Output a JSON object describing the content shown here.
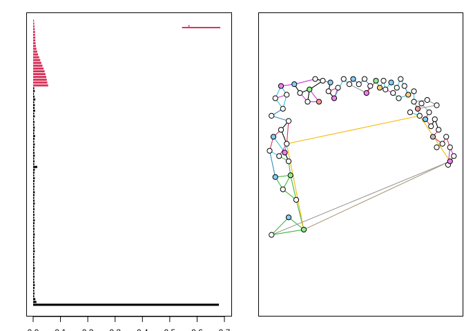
{
  "chart_data": [
    {
      "type": "bar",
      "orientation": "horizontal",
      "xlim": [
        0,
        0.7
      ],
      "x_ticks": [
        0.0,
        0.1,
        0.2,
        0.3,
        0.4,
        0.5,
        0.6,
        0.7
      ],
      "x_tick_labels": [
        "0.0",
        "0.1",
        "0.2",
        "0.3",
        "0.4",
        "0.5",
        "0.6",
        "0.7"
      ],
      "title": "",
      "xlabel": "",
      "ylabel": "",
      "grid": false,
      "colors": {
        "top_group": "#d6335a",
        "bottom_group": "#000000"
      },
      "series": [
        {
          "color": "#d6335a",
          "values": [
            0.003,
            0.004,
            0.005,
            0.006,
            0.007,
            0.007,
            0.008,
            0.008,
            0.009,
            0.01,
            0.012,
            0.015,
            0.018,
            0.022,
            0.026,
            0.03,
            0.034,
            0.038,
            0.042,
            0.045,
            0.048,
            0.05,
            0.052,
            0.055
          ],
          "highlight": {
            "start": 0.545,
            "end": 0.685,
            "marker": 0.57
          }
        },
        {
          "color": "#000000",
          "values": [
            0.004,
            0.006,
            0.003,
            0.005,
            0.008,
            0.004,
            0.006,
            0.005,
            0.007,
            0.004,
            0.006,
            0.003,
            0.005,
            0.004,
            0.006,
            0.005,
            0.004,
            0.007,
            0.005,
            0.004,
            0.006,
            0.005,
            0.004,
            0.005,
            0.006,
            0.004,
            0.005,
            0.004,
            0.015,
            0.006,
            0.005,
            0.004,
            0.006,
            0.005,
            0.004,
            0.005,
            0.004,
            0.006,
            0.005,
            0.004,
            0.005,
            0.006,
            0.004,
            0.005,
            0.004,
            0.005,
            0.004,
            0.006,
            0.005,
            0.004,
            0.005,
            0.004,
            0.006,
            0.005,
            0.004,
            0.005,
            0.004,
            0.005,
            0.006,
            0.004,
            0.005,
            0.004,
            0.005,
            0.004,
            0.006,
            0.005,
            0.004,
            0.005,
            0.004,
            0.005,
            0.006,
            0.005,
            0.004,
            0.005,
            0.004,
            0.008,
            0.012,
            0.68
          ]
        }
      ]
    },
    {
      "type": "network",
      "title": "",
      "axes": false,
      "edge_colors": {
        "blue": "#2b8cbe",
        "cyan": "#33c1d6",
        "magenta": "#cc33cc",
        "crimson": "#d6335a",
        "green": "#3db83d",
        "gold": "#f5b800",
        "gray": "#999999",
        "tan": "#a89a7a",
        "black": "#000000"
      },
      "node_palette": [
        "#ffffff",
        "#87cefa",
        "#90ee90",
        "#ffd27f",
        "#ff9999",
        "#ee82ee",
        "#bfbfbf"
      ],
      "nodes": [
        [
          0.03,
          0.1,
          0
        ],
        [
          0.12,
          0.2,
          1
        ],
        [
          0.2,
          0.13,
          2
        ],
        [
          0.16,
          0.3,
          0
        ],
        [
          0.09,
          0.36,
          0
        ],
        [
          0.05,
          0.43,
          1
        ],
        [
          0.13,
          0.44,
          2
        ],
        [
          0.12,
          0.52,
          0
        ],
        [
          0.07,
          0.55,
          0
        ],
        [
          0.02,
          0.58,
          0
        ],
        [
          0.04,
          0.66,
          1
        ],
        [
          0.08,
          0.7,
          0
        ],
        [
          0.11,
          0.62,
          0
        ],
        [
          0.1,
          0.57,
          5
        ],
        [
          0.12,
          0.75,
          0
        ],
        [
          0.03,
          0.78,
          0
        ],
        [
          0.09,
          0.82,
          0
        ],
        [
          0.05,
          0.88,
          0
        ],
        [
          0.11,
          0.9,
          0
        ],
        [
          0.08,
          0.95,
          5
        ],
        [
          0.15,
          0.96,
          1
        ],
        [
          0.18,
          0.91,
          0
        ],
        [
          0.23,
          0.93,
          2
        ],
        [
          0.22,
          0.86,
          0
        ],
        [
          0.28,
          0.86,
          4
        ],
        [
          0.26,
          0.99,
          0
        ],
        [
          0.3,
          0.98,
          0
        ],
        [
          0.34,
          0.97,
          1
        ],
        [
          0.33,
          0.92,
          0
        ],
        [
          0.38,
          0.94,
          0
        ],
        [
          0.36,
          0.88,
          5
        ],
        [
          0.41,
          0.99,
          0
        ],
        [
          0.44,
          0.96,
          0
        ],
        [
          0.46,
          0.99,
          1
        ],
        [
          0.49,
          0.96,
          0
        ],
        [
          0.52,
          0.99,
          0
        ],
        [
          0.55,
          0.95,
          0
        ],
        [
          0.53,
          0.91,
          5
        ],
        [
          0.58,
          0.98,
          2
        ],
        [
          0.6,
          0.94,
          3
        ],
        [
          0.62,
          0.98,
          0
        ],
        [
          0.63,
          0.93,
          0
        ],
        [
          0.66,
          0.97,
          1
        ],
        [
          0.69,
          0.94,
          0
        ],
        [
          0.71,
          0.99,
          0
        ],
        [
          0.73,
          0.95,
          0
        ],
        [
          0.75,
          0.9,
          3
        ],
        [
          0.78,
          0.92,
          0
        ],
        [
          0.7,
          0.88,
          0
        ],
        [
          0.67,
          0.91,
          0
        ],
        [
          0.78,
          0.86,
          0
        ],
        [
          0.8,
          0.82,
          4
        ],
        [
          0.82,
          0.85,
          0
        ],
        [
          0.86,
          0.8,
          0
        ],
        [
          0.84,
          0.76,
          1
        ],
        [
          0.87,
          0.72,
          0
        ],
        [
          0.89,
          0.76,
          0
        ],
        [
          0.91,
          0.7,
          0
        ],
        [
          0.88,
          0.66,
          6
        ],
        [
          0.93,
          0.62,
          0
        ],
        [
          0.95,
          0.66,
          0
        ],
        [
          0.97,
          0.6,
          0
        ],
        [
          0.99,
          0.55,
          0
        ],
        [
          0.96,
          0.5,
          0
        ],
        [
          0.9,
          0.84,
          0
        ],
        [
          0.85,
          0.87,
          0
        ],
        [
          0.81,
          0.78,
          0
        ],
        [
          0.76,
          0.8,
          0
        ],
        [
          0.9,
          0.6,
          0
        ],
        [
          0.97,
          0.52,
          5
        ]
      ],
      "edges": [
        [
          0,
          1,
          "green"
        ],
        [
          1,
          2,
          "green"
        ],
        [
          0,
          2,
          "green"
        ],
        [
          2,
          3,
          "green"
        ],
        [
          3,
          4,
          "green"
        ],
        [
          4,
          6,
          "green"
        ],
        [
          4,
          5,
          "green"
        ],
        [
          5,
          6,
          "green"
        ],
        [
          6,
          7,
          "green"
        ],
        [
          7,
          8,
          "green"
        ],
        [
          8,
          9,
          "cyan"
        ],
        [
          7,
          13,
          "black"
        ],
        [
          13,
          12,
          "cyan"
        ],
        [
          9,
          10,
          "crimson"
        ],
        [
          10,
          11,
          "crimson"
        ],
        [
          11,
          12,
          "black"
        ],
        [
          11,
          14,
          "black"
        ],
        [
          12,
          14,
          "crimson"
        ],
        [
          14,
          15,
          "blue"
        ],
        [
          15,
          16,
          "blue"
        ],
        [
          16,
          17,
          "cyan"
        ],
        [
          17,
          18,
          "magenta"
        ],
        [
          18,
          16,
          "cyan"
        ],
        [
          18,
          19,
          "cyan"
        ],
        [
          19,
          20,
          "magenta"
        ],
        [
          20,
          21,
          "black"
        ],
        [
          21,
          22,
          "black"
        ],
        [
          22,
          23,
          "black"
        ],
        [
          21,
          23,
          "magenta"
        ],
        [
          23,
          24,
          "magenta"
        ],
        [
          24,
          22,
          "magenta"
        ],
        [
          20,
          25,
          "magenta"
        ],
        [
          25,
          26,
          "black"
        ],
        [
          26,
          27,
          "magenta"
        ],
        [
          27,
          28,
          "black"
        ],
        [
          28,
          29,
          "crimson"
        ],
        [
          29,
          30,
          "magenta"
        ],
        [
          30,
          31,
          "cyan"
        ],
        [
          31,
          32,
          "cyan"
        ],
        [
          32,
          33,
          "cyan"
        ],
        [
          33,
          34,
          "blue"
        ],
        [
          34,
          35,
          "blue"
        ],
        [
          35,
          36,
          "blue"
        ],
        [
          36,
          37,
          "magenta"
        ],
        [
          37,
          38,
          "crimson"
        ],
        [
          38,
          39,
          "cyan"
        ],
        [
          39,
          40,
          "cyan"
        ],
        [
          40,
          41,
          "cyan"
        ],
        [
          41,
          42,
          "cyan"
        ],
        [
          42,
          43,
          "cyan"
        ],
        [
          43,
          44,
          "cyan"
        ],
        [
          44,
          45,
          "cyan"
        ],
        [
          45,
          46,
          "blue"
        ],
        [
          46,
          47,
          "cyan"
        ],
        [
          46,
          48,
          "cyan"
        ],
        [
          48,
          49,
          "cyan"
        ],
        [
          49,
          41,
          "magenta"
        ],
        [
          47,
          50,
          "cyan"
        ],
        [
          50,
          51,
          "cyan"
        ],
        [
          51,
          52,
          "gold"
        ],
        [
          52,
          53,
          "gray"
        ],
        [
          53,
          54,
          "crimson"
        ],
        [
          54,
          55,
          "crimson"
        ],
        [
          55,
          56,
          "black"
        ],
        [
          56,
          57,
          "black"
        ],
        [
          57,
          58,
          "crimson"
        ],
        [
          58,
          59,
          "crimson"
        ],
        [
          59,
          60,
          "crimson"
        ],
        [
          60,
          61,
          "crimson"
        ],
        [
          61,
          62,
          "magenta"
        ],
        [
          62,
          63,
          "magenta"
        ],
        [
          63,
          61,
          "magenta"
        ],
        [
          51,
          64,
          "gray"
        ],
        [
          64,
          65,
          "gray"
        ],
        [
          65,
          50,
          "gray"
        ],
        [
          66,
          67,
          "cyan"
        ],
        [
          66,
          51,
          "cyan"
        ],
        [
          9,
          5,
          "blue"
        ],
        [
          2,
          69,
          "tan"
        ],
        [
          12,
          66,
          "gold"
        ],
        [
          66,
          69,
          "gold"
        ],
        [
          12,
          2,
          "gold"
        ],
        [
          69,
          0,
          "gray"
        ],
        [
          10,
          13,
          "cyan"
        ],
        [
          8,
          12,
          "magenta"
        ],
        [
          3,
          6,
          "green"
        ],
        [
          37,
          32,
          "gray"
        ],
        [
          28,
          30,
          "black"
        ],
        [
          22,
          26,
          "black"
        ],
        [
          19,
          17,
          "cyan"
        ]
      ]
    }
  ]
}
